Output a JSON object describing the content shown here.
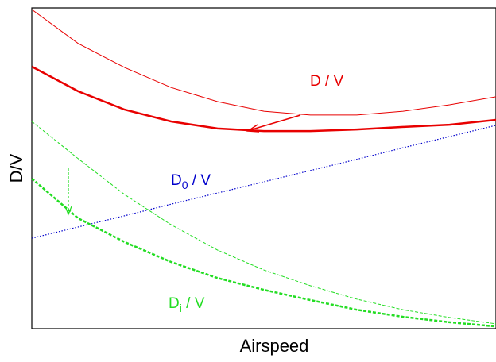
{
  "chart_data": {
    "type": "line",
    "x_label": "Airspeed",
    "y_label": "D/V",
    "x": [
      0,
      1,
      2,
      3,
      4,
      5,
      6,
      7,
      8,
      9,
      10
    ],
    "xlim": [
      0,
      10
    ],
    "ylim": [
      0,
      10
    ],
    "series": [
      {
        "color": "#e80000",
        "width": 1,
        "style": "solid",
        "values": [
          9.95,
          8.89,
          8.14,
          7.52,
          7.08,
          6.78,
          6.66,
          6.66,
          6.78,
          6.98,
          7.23
        ]
      },
      {
        "color": "#e80000",
        "width": 2.5,
        "style": "solid",
        "values": [
          8.17,
          7.4,
          6.83,
          6.46,
          6.24,
          6.16,
          6.16,
          6.21,
          6.29,
          6.36,
          6.51
        ]
      },
      {
        "color": "#0000cc",
        "width": 1.2,
        "style": "dotted",
        "values": [
          2.82,
          3.17,
          3.52,
          3.88,
          4.23,
          4.58,
          4.93,
          5.28,
          5.64,
          5.99,
          6.34
        ]
      },
      {
        "color": "#22dd22",
        "width": 1,
        "style": "dashed",
        "values": [
          6.46,
          5.3,
          4.18,
          3.24,
          2.45,
          1.83,
          1.34,
          0.92,
          0.59,
          0.35,
          0.15
        ]
      },
      {
        "color": "#22dd22",
        "width": 2.5,
        "style": "dashed",
        "values": [
          4.68,
          3.44,
          2.7,
          2.08,
          1.58,
          1.21,
          0.89,
          0.59,
          0.37,
          0.2,
          0.07
        ]
      }
    ],
    "annotations": [
      {
        "base": "D / V",
        "color": "#e80000"
      },
      {
        "base": "D",
        "sub": "0",
        "tail": " / V",
        "color": "#0000cc"
      },
      {
        "base": "D",
        "sub": "i",
        "tail": " / V",
        "color": "#22dd22"
      }
    ]
  }
}
